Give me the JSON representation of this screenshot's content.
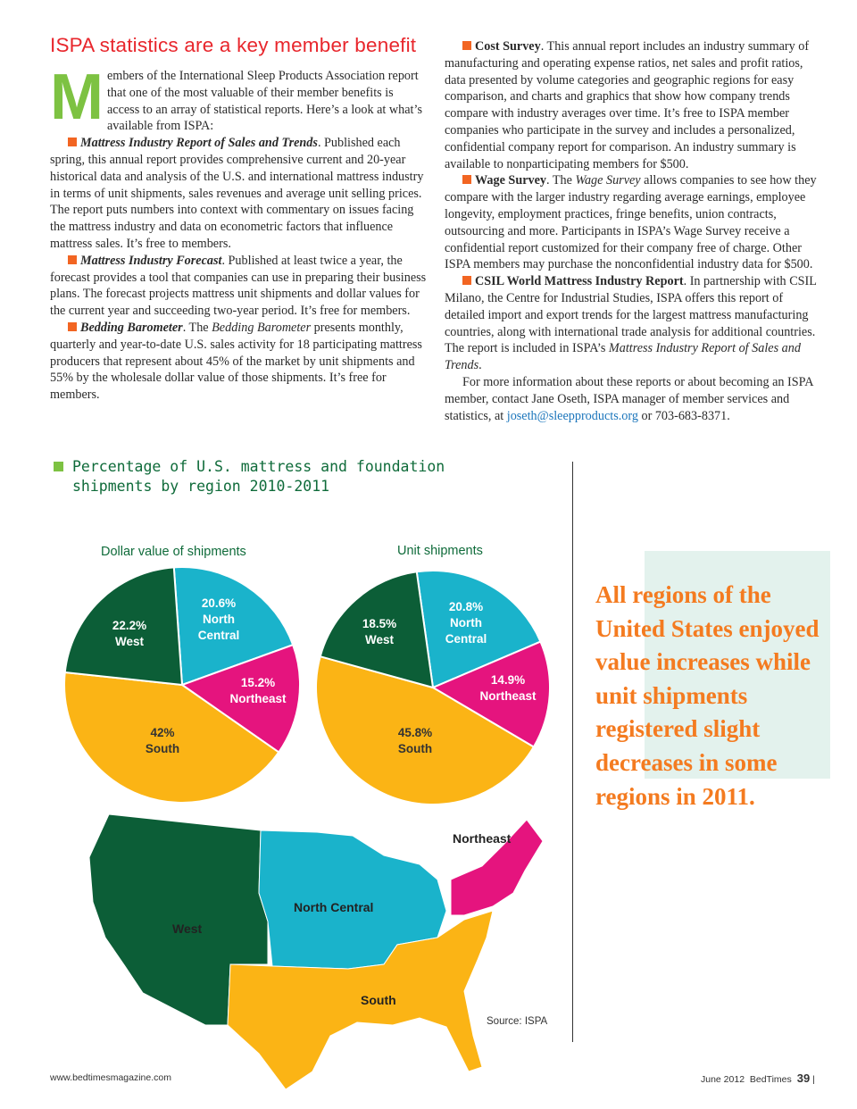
{
  "article": {
    "headline": "ISPA statistics are a key member benefit",
    "dropcap": "M",
    "intro": "embers of the International Sleep Products Association report that one of the most valuable of their member benefits is access to an array of statistical reports. Here’s a look at what’s available from ISPA:",
    "items": [
      {
        "title": "Mattress Industry Report of Sales and Trends",
        "text": ". Published each spring, this annual report provides comprehensive current and 20-year historical data and analysis of the U.S. and international mattress industry in terms of unit shipments, sales revenues and average unit selling prices. The report puts numbers into context with commentary on issues facing the mattress industry and data on econometric factors that influence mattress sales. It’s free to members."
      },
      {
        "title": "Mattress Industry Forecast",
        "text": ". Published at least twice a year, the forecast provides a tool that companies can use in preparing their business plans. The forecast projects mattress unit shipments and dollar values for the current year and succeeding two-year period. It’s free for members."
      },
      {
        "title": "Bedding Barometer",
        "text_a": ". The ",
        "italic": "Bedding Barometer",
        "text_b": " presents monthly, quarterly and year-to-date U.S. sales activity for 18 participating mattress producers that represent about 45% of the market by unit shipments and 55% by the wholesale dollar value of those shipments. It’s free for members."
      },
      {
        "title": "Cost Survey",
        "text": ". This annual report includes an industry summary of manufacturing and operating expense ratios, net sales and profit ratios, data presented by volume categories and geographic regions for easy comparison, and charts and graphics that show how company trends compare with industry averages over time. It’s free to ISPA member companies who participate in the survey and includes a personalized, confidential company report for comparison. An industry summary is available to nonparticipating members for $500."
      },
      {
        "title": "Wage Survey",
        "text_a": ". The ",
        "italic": "Wage Survey",
        "text_b": " allows companies to see how they compare with the larger industry regarding average earnings, employee longevity, employment practices, fringe benefits, union contracts, outsourcing and more. Participants in ISPA’s Wage Survey receive a confidential report customized for their company free of charge. Other ISPA members may purchase the nonconfidential industry data for $500."
      },
      {
        "title": "CSIL World Mattress Industry Report",
        "text_a": ". In partnership with CSIL Milano, the Centre for Industrial Studies, ISPA offers this report of detailed import and export trends for the largest mattress manufacturing countries, along with international trade analysis for additional countries. The report is included in ISPA’s ",
        "italic": "Mattress Industry Report of Sales and Trends",
        "text_b": "."
      }
    ],
    "closing_a": "For more information about these reports or about becoming an ISPA member, contact Jane Oseth, ISPA manager of member services and statistics, at ",
    "email": "joseth@sleepproducts.org",
    "closing_b": " or 703-683-8371."
  },
  "colors": {
    "west": "#0c5e37",
    "north_central": "#1ab3cb",
    "northeast": "#e5147e",
    "south": "#fbb415",
    "accent": "#f47b20"
  },
  "chart_title": "Percentage of U.S. mattress and foundation shipments by region 2010-2011",
  "chart_data": [
    {
      "type": "pie",
      "title": "Dollar value of shipments",
      "slices": [
        {
          "label": "North Central",
          "value": 20.6,
          "display": "20.6%"
        },
        {
          "label": "Northeast",
          "value": 15.2,
          "display": "15.2%"
        },
        {
          "label": "South",
          "value": 42,
          "display": "42%"
        },
        {
          "label": "West",
          "value": 22.2,
          "display": "22.2%"
        }
      ]
    },
    {
      "type": "pie",
      "title": "Unit shipments",
      "slices": [
        {
          "label": "North Central",
          "value": 20.8,
          "display": "20.8%"
        },
        {
          "label": "Northeast",
          "value": 14.9,
          "display": "14.9%"
        },
        {
          "label": "South",
          "value": 45.8,
          "display": "45.8%"
        },
        {
          "label": "West",
          "value": 18.5,
          "display": "18.5%"
        }
      ]
    }
  ],
  "map": {
    "labels": {
      "west": "West",
      "north_central": "North Central",
      "northeast": "Northeast",
      "south": "South"
    },
    "source": "Source: ISPA"
  },
  "callout": "All regions of the United States enjoyed value increases while unit shipments registered slight decreases in some regions in 2011.",
  "footer": {
    "website": "www.bedtimesmagazine.com",
    "issue": "June 2012  BedTimes",
    "page": "39"
  }
}
